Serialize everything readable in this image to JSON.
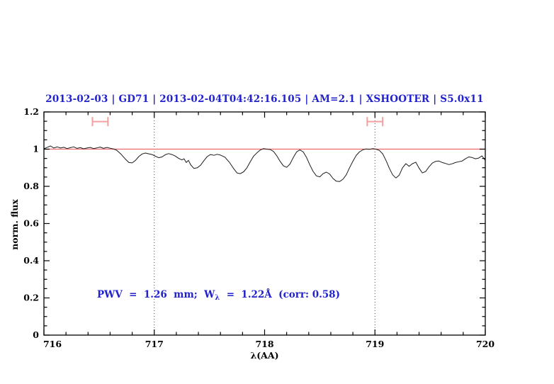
{
  "colors": {
    "accent_blue": "#2222cd",
    "reference_red": "#ee6a6a",
    "marker_pink": "#f2a0a0",
    "spectrum_black": "#1c1c1c",
    "dotted_gray": "#4d4d4d"
  },
  "plot": {
    "title": "2013-02-03 | GD71 | 2013-02-04T04:42:16.105 | AM=2.1 | XSHOOTER | S5.0x11",
    "y_label": "norm. flux",
    "x_label": "λ(AA)",
    "annotation_prefix": "PWV  =  1.26  mm;  W",
    "annotation_sub": "λ",
    "annotation_suffix": "  =  1.22Å  (corr: 0.58)"
  },
  "chart_data": {
    "type": "line",
    "title": "2013-02-03 | GD71 | 2013-02-04T04:42:16.105 | AM=2.1 | XSHOOTER | S5.0x11",
    "xlabel": "λ(AA)",
    "ylabel": "norm. flux",
    "xlim": [
      716,
      720
    ],
    "ylim": [
      0,
      1.2
    ],
    "grid": "off",
    "legend": "none",
    "x_major_ticks": {
      "values": [
        716,
        717,
        718,
        719,
        720
      ],
      "labels": [
        "716",
        "717",
        "718",
        "719",
        "720"
      ]
    },
    "y_major_ticks": {
      "values": [
        0,
        0.2,
        0.4,
        0.6,
        0.8,
        1,
        1.2
      ],
      "labels": [
        "0",
        "0.2",
        "0.4",
        "0.6",
        "0.8",
        "1",
        "1.2"
      ]
    },
    "x_minor_step": 0.2,
    "y_minor_step": 0.05,
    "dotted_vlines": [
      717,
      719
    ],
    "reference_line_y": 1.0,
    "annotation_text": "PWV = 1.26 mm; W_λ = 1.22Å (corr: 0.58)",
    "error_markers": [
      {
        "x_center": 716.51,
        "x_half_width": 0.07,
        "y_center": 1.148,
        "cap_half_height": 0.025
      },
      {
        "x_center": 719.0,
        "x_half_width": 0.07,
        "y_center": 1.148,
        "cap_half_height": 0.025
      }
    ],
    "series": [
      {
        "name": "normalized flux spectrum",
        "x": [
          716.0,
          716.03,
          716.06,
          716.09,
          716.12,
          716.15,
          716.18,
          716.21,
          716.24,
          716.27,
          716.3,
          716.33,
          716.36,
          716.39,
          716.42,
          716.45,
          716.48,
          716.51,
          716.54,
          716.57,
          716.6,
          716.63,
          716.66,
          716.7,
          716.74,
          716.77,
          716.8,
          716.83,
          716.86,
          716.89,
          716.92,
          716.95,
          716.98,
          717.01,
          717.04,
          717.07,
          717.1,
          717.13,
          717.16,
          717.19,
          717.22,
          717.25,
          717.27,
          717.29,
          717.31,
          717.33,
          717.36,
          717.39,
          717.42,
          717.45,
          717.48,
          717.51,
          717.54,
          717.57,
          717.6,
          717.64,
          717.68,
          717.72,
          717.75,
          717.78,
          717.81,
          717.84,
          717.87,
          717.9,
          717.93,
          717.96,
          717.99,
          718.02,
          718.05,
          718.08,
          718.11,
          718.14,
          718.17,
          718.2,
          718.23,
          718.26,
          718.29,
          718.32,
          718.35,
          718.38,
          718.41,
          718.44,
          718.47,
          718.5,
          718.53,
          718.56,
          718.59,
          718.62,
          718.65,
          718.68,
          718.71,
          718.74,
          718.77,
          718.8,
          718.83,
          718.86,
          718.89,
          718.92,
          718.95,
          718.98,
          719.01,
          719.04,
          719.07,
          719.1,
          719.13,
          719.16,
          719.19,
          719.22,
          719.25,
          719.28,
          719.31,
          719.34,
          719.37,
          719.4,
          719.43,
          719.46,
          719.49,
          719.52,
          719.55,
          719.58,
          719.61,
          719.64,
          719.67,
          719.7,
          719.73,
          719.76,
          719.79,
          719.82,
          719.85,
          719.88,
          719.91,
          719.94,
          719.97,
          720.0
        ],
        "y": [
          1.002,
          1.01,
          1.017,
          1.006,
          1.012,
          1.006,
          1.01,
          1.003,
          1.008,
          1.012,
          1.004,
          1.008,
          1.002,
          1.006,
          1.009,
          1.003,
          1.007,
          1.011,
          1.004,
          1.009,
          1.005,
          1.001,
          0.994,
          0.972,
          0.945,
          0.928,
          0.926,
          0.94,
          0.96,
          0.974,
          0.979,
          0.975,
          0.971,
          0.962,
          0.954,
          0.958,
          0.97,
          0.976,
          0.971,
          0.963,
          0.951,
          0.942,
          0.948,
          0.928,
          0.94,
          0.916,
          0.896,
          0.9,
          0.914,
          0.938,
          0.96,
          0.971,
          0.967,
          0.972,
          0.968,
          0.957,
          0.93,
          0.895,
          0.872,
          0.868,
          0.878,
          0.9,
          0.932,
          0.962,
          0.98,
          0.995,
          1.003,
          1.0,
          0.998,
          0.988,
          0.965,
          0.935,
          0.91,
          0.902,
          0.92,
          0.955,
          0.985,
          0.996,
          0.985,
          0.955,
          0.915,
          0.88,
          0.856,
          0.851,
          0.868,
          0.876,
          0.866,
          0.842,
          0.828,
          0.826,
          0.838,
          0.862,
          0.9,
          0.935,
          0.966,
          0.985,
          0.996,
          1.001,
          0.999,
          1.003,
          1.0,
          0.993,
          0.975,
          0.94,
          0.898,
          0.862,
          0.845,
          0.86,
          0.9,
          0.922,
          0.908,
          0.922,
          0.93,
          0.898,
          0.872,
          0.88,
          0.905,
          0.925,
          0.934,
          0.936,
          0.928,
          0.923,
          0.917,
          0.921,
          0.928,
          0.932,
          0.936,
          0.948,
          0.958,
          0.955,
          0.948,
          0.952,
          0.964,
          0.94
        ]
      }
    ]
  }
}
